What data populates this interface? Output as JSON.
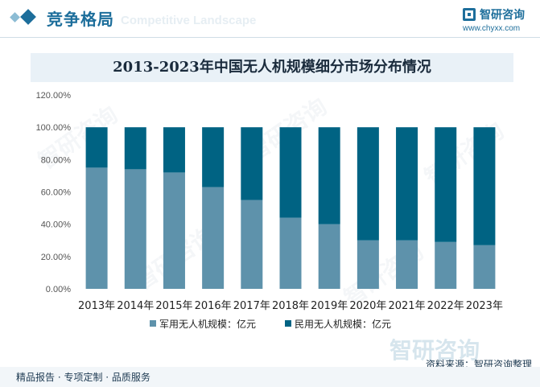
{
  "header": {
    "title": "竞争格局",
    "title_en": "Competitive Landscape",
    "logo_name": "智研咨询",
    "logo_url": "www.chyxx.com"
  },
  "colors": {
    "military": "#5e92ab",
    "civil": "#006383",
    "accent": "#1d6e9b",
    "title_bg": "#e9f1f7"
  },
  "chart_data": {
    "type": "bar",
    "stacked": true,
    "title": "2013-2023年中国无人机规模细分市场分布情况",
    "categories": [
      "2013年",
      "2014年",
      "2015年",
      "2016年",
      "2017年",
      "2018年",
      "2019年",
      "2020年",
      "2021年",
      "2022年",
      "2023年"
    ],
    "series": [
      {
        "name": "军用无人机规模：亿元",
        "color": "#5e92ab",
        "values": [
          0.75,
          0.74,
          0.72,
          0.63,
          0.55,
          0.44,
          0.4,
          0.3,
          0.3,
          0.29,
          0.27
        ]
      },
      {
        "name": "民用无人机规模：亿元",
        "color": "#006383",
        "values": [
          0.25,
          0.26,
          0.28,
          0.37,
          0.45,
          0.56,
          0.6,
          0.7,
          0.7,
          0.71,
          0.73
        ]
      }
    ],
    "y_ticks": [
      "0.00%",
      "20.00%",
      "40.00%",
      "60.00%",
      "80.00%",
      "100.00%",
      "120.00%"
    ],
    "ylim": [
      0,
      1.2
    ],
    "grid": false,
    "legend_position": "bottom"
  },
  "footer": {
    "left": "精品报告 · 专项定制 · 品质服务",
    "source": "资料来源：智研咨询整理",
    "brand": "智研咨询"
  }
}
